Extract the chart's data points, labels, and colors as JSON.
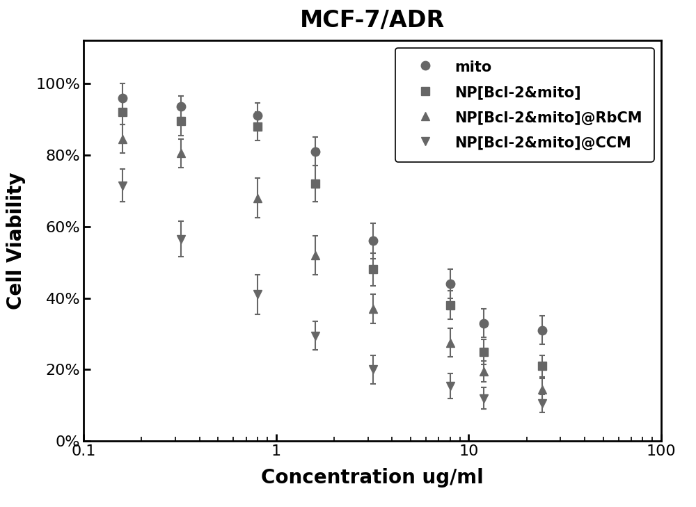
{
  "title": "MCF-7/ADR",
  "xlabel": "Concentration ug/ml",
  "ylabel": "Cell Viability",
  "title_fontsize": 24,
  "label_fontsize": 20,
  "tick_fontsize": 16,
  "legend_fontsize": 15,
  "background_color": "#ffffff",
  "line_color": "#666666",
  "series": [
    {
      "label": "mito",
      "marker": "o",
      "x": [
        0.16,
        0.32,
        0.8,
        1.6,
        3.2,
        8,
        12,
        24
      ],
      "y": [
        0.96,
        0.935,
        0.91,
        0.81,
        0.56,
        0.44,
        0.33,
        0.31
      ],
      "yerr": [
        0.04,
        0.03,
        0.035,
        0.04,
        0.05,
        0.04,
        0.04,
        0.04
      ]
    },
    {
      "label": "NP[Bcl-2&mito]",
      "marker": "s",
      "x": [
        0.16,
        0.32,
        0.8,
        1.6,
        3.2,
        8,
        12,
        24
      ],
      "y": [
        0.92,
        0.895,
        0.88,
        0.72,
        0.48,
        0.38,
        0.25,
        0.21
      ],
      "yerr": [
        0.035,
        0.04,
        0.04,
        0.05,
        0.045,
        0.04,
        0.035,
        0.03
      ]
    },
    {
      "label": "NP[Bcl-2&mito]@RbCM",
      "marker": "^",
      "x": [
        0.16,
        0.32,
        0.8,
        1.6,
        3.2,
        8,
        12,
        24
      ],
      "y": [
        0.845,
        0.805,
        0.68,
        0.52,
        0.37,
        0.275,
        0.195,
        0.145
      ],
      "yerr": [
        0.04,
        0.04,
        0.055,
        0.055,
        0.04,
        0.04,
        0.03,
        0.03
      ]
    },
    {
      "label": "NP[Bcl-2&mito]@CCM",
      "marker": "v",
      "x": [
        0.16,
        0.32,
        0.8,
        1.6,
        3.2,
        8,
        12,
        24
      ],
      "y": [
        0.715,
        0.565,
        0.41,
        0.295,
        0.2,
        0.155,
        0.12,
        0.105
      ],
      "yerr": [
        0.045,
        0.05,
        0.055,
        0.04,
        0.04,
        0.035,
        0.03,
        0.025
      ]
    }
  ]
}
